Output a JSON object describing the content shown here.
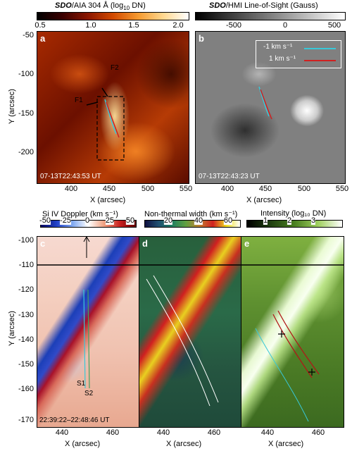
{
  "top_left": {
    "colorbar_title_italic": "SDO",
    "colorbar_title_rest": "/AIA 304 Å (log",
    "colorbar_title_sub": "10",
    "colorbar_title_end": " DN)",
    "colorbar_ticks": [
      "0.5",
      "1.0",
      "1.5",
      "2.0"
    ],
    "panel_label": "a",
    "timestamp": "07-13T22:43:53 UT",
    "annotations": [
      "F1",
      "F2"
    ]
  },
  "top_right": {
    "colorbar_title_italic": "SDO",
    "colorbar_title_rest": "/HMI Line-of-Sight (Gauss)",
    "colorbar_ticks": [
      "-500",
      "0",
      "500"
    ],
    "panel_label": "b",
    "timestamp": "07-13T22:43:23 UT",
    "legend": [
      {
        "label": "-1 km s⁻¹",
        "color": "#38c8d8"
      },
      {
        "label": "1 km s⁻¹",
        "color": "#d02020"
      }
    ]
  },
  "top_axes": {
    "x_ticks_a": [
      "400",
      "450",
      "500",
      "550"
    ],
    "x_ticks_b": [
      "400",
      "450",
      "500",
      "550"
    ],
    "y_ticks": [
      "-50",
      "-100",
      "-150",
      "-200"
    ],
    "xlabel": "X (arcsec)",
    "ylabel": "Y (arcsec)"
  },
  "bottom": {
    "c": {
      "colorbar_title": "Si IV Doppler (km s⁻¹)",
      "ticks": [
        "-50",
        "-25",
        "0",
        "25",
        "50"
      ],
      "panel_label": "c",
      "timestamp": "22:39:22–22:48:46 UT",
      "annotations": [
        "S1",
        "S2"
      ]
    },
    "d": {
      "colorbar_title": "Non-thermal width (km s⁻¹)",
      "ticks": [
        "20",
        "40",
        "60"
      ],
      "panel_label": "d"
    },
    "e": {
      "colorbar_title": "Intensity (log₁₀ DN)",
      "ticks": [
        "1",
        "2",
        "3"
      ],
      "panel_label": "e"
    },
    "x_ticks": [
      "440",
      "460"
    ],
    "y_ticks": [
      "-100",
      "-110",
      "-120",
      "-130",
      "-140",
      "-150",
      "-160",
      "-170"
    ],
    "xlabel": "X (arcsec)",
    "ylabel": "Y (arcsec)"
  }
}
